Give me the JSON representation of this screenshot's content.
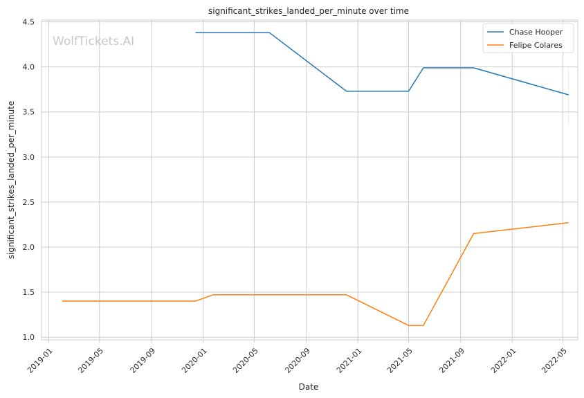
{
  "chart_data": {
    "type": "line",
    "title": "significant_strikes_landed_per_minute over time",
    "xlabel": "Date",
    "ylabel": "significant_strikes_landed_per_minute",
    "watermark": "WolfTickets.AI",
    "xlim": [
      "2018-12-15",
      "2022-06-05"
    ],
    "ylim": [
      0.97,
      4.52
    ],
    "x_ticks": [
      "2019-01",
      "2019-05",
      "2019-09",
      "2020-01",
      "2020-05",
      "2020-09",
      "2021-01",
      "2021-05",
      "2021-09",
      "2022-01",
      "2022-05"
    ],
    "y_ticks": [
      "1.0",
      "1.5",
      "2.0",
      "2.5",
      "3.0",
      "3.5",
      "4.0",
      "4.5"
    ],
    "grid": true,
    "legend_position": "top-right",
    "series": [
      {
        "name": "Chase Hooper",
        "color": "#1f77b4",
        "points": [
          {
            "x": "2019-12-14",
            "y": 4.38
          },
          {
            "x": "2020-06-06",
            "y": 4.38
          },
          {
            "x": "2020-12-05",
            "y": 3.73
          },
          {
            "x": "2021-05-01",
            "y": 3.73
          },
          {
            "x": "2021-06-05",
            "y": 3.99
          },
          {
            "x": "2021-10-02",
            "y": 3.99
          },
          {
            "x": "2022-05-14",
            "y": 3.69
          }
        ]
      },
      {
        "name": "Felipe Colares",
        "color": "#ff7f0e",
        "points": [
          {
            "x": "2019-02-02",
            "y": 1.4
          },
          {
            "x": "2019-12-14",
            "y": 1.4
          },
          {
            "x": "2020-01-25",
            "y": 1.47
          },
          {
            "x": "2020-12-05",
            "y": 1.47
          },
          {
            "x": "2021-05-01",
            "y": 1.13
          },
          {
            "x": "2021-06-05",
            "y": 1.13
          },
          {
            "x": "2021-10-02",
            "y": 2.15
          },
          {
            "x": "2022-05-14",
            "y": 2.27
          }
        ]
      }
    ]
  }
}
